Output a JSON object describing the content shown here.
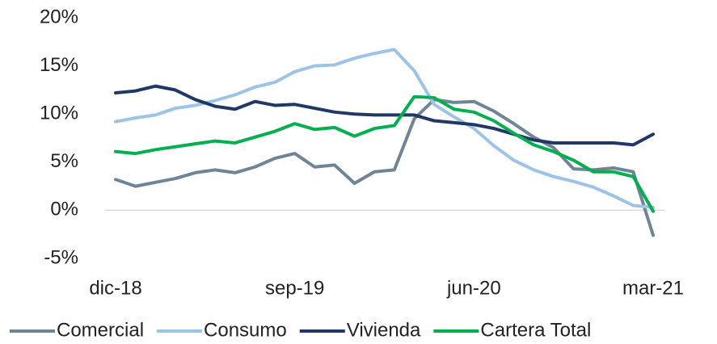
{
  "chart_data": {
    "type": "line",
    "categories": [
      "dic-18",
      null,
      null,
      null,
      null,
      null,
      null,
      null,
      null,
      "sep-19",
      null,
      null,
      null,
      null,
      null,
      null,
      null,
      null,
      "jun-20",
      null,
      null,
      null,
      null,
      null,
      null,
      null,
      null,
      "mar-21"
    ],
    "series": [
      {
        "name": "Comercial",
        "color": "#6f8596",
        "values": [
          3.2,
          2.5,
          2.9,
          3.3,
          3.9,
          4.2,
          3.9,
          4.5,
          5.4,
          5.9,
          4.5,
          4.7,
          2.8,
          4.0,
          4.2,
          9.5,
          11.5,
          11.2,
          11.3,
          10.3,
          9.0,
          7.6,
          6.5,
          4.3,
          4.2,
          4.4,
          4.0,
          -2.6
        ]
      },
      {
        "name": "Consumo",
        "color": "#9dc3e6",
        "values": [
          9.2,
          9.6,
          9.9,
          10.6,
          10.9,
          11.4,
          12.0,
          12.8,
          13.3,
          14.4,
          15.0,
          15.1,
          15.8,
          16.3,
          16.7,
          14.5,
          11.0,
          9.7,
          8.5,
          6.7,
          5.2,
          4.2,
          3.5,
          3.0,
          2.4,
          1.5,
          0.5,
          0.3
        ]
      },
      {
        "name": "Vivienda",
        "color": "#1f3864",
        "values": [
          12.2,
          12.4,
          12.9,
          12.5,
          11.5,
          10.8,
          10.5,
          11.3,
          10.9,
          11.0,
          10.6,
          10.2,
          10.0,
          9.9,
          9.9,
          9.9,
          9.3,
          9.1,
          8.9,
          8.5,
          7.9,
          7.3,
          7.0,
          7.0,
          7.0,
          7.0,
          6.8,
          7.9
        ]
      },
      {
        "name": "Cartera Total",
        "color": "#00b050",
        "values": [
          6.1,
          5.9,
          6.3,
          6.6,
          6.9,
          7.2,
          7.0,
          7.6,
          8.2,
          9.0,
          8.4,
          8.6,
          7.7,
          8.5,
          8.8,
          11.8,
          11.7,
          10.5,
          10.2,
          9.3,
          8.0,
          6.8,
          6.1,
          5.2,
          4.0,
          4.0,
          3.5,
          -0.1
        ]
      }
    ],
    "ylim": [
      -5,
      20
    ],
    "yticks": [
      {
        "value": -5,
        "label": "-5%"
      },
      {
        "value": 0,
        "label": "0%"
      },
      {
        "value": 5,
        "label": "5%"
      },
      {
        "value": 10,
        "label": "10%"
      },
      {
        "value": 15,
        "label": "15%"
      },
      {
        "value": 20,
        "label": "20%"
      }
    ],
    "legend": "bottom"
  }
}
